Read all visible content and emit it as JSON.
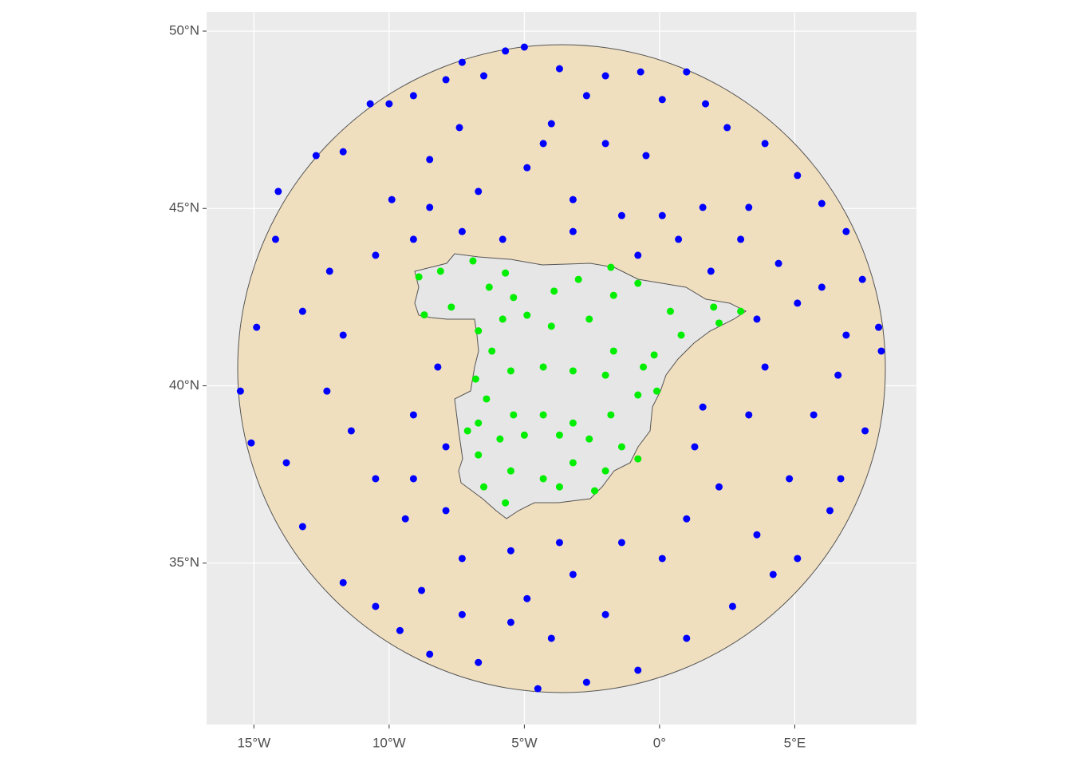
{
  "chart_data": {
    "type": "scatter",
    "xlim": [
      -16.75,
      9.5
    ],
    "ylim": [
      30.45,
      50.54
    ],
    "xticks": [
      {
        "value": -15,
        "label": "15°W"
      },
      {
        "value": -10,
        "label": "10°W"
      },
      {
        "value": -5,
        "label": "5°W"
      },
      {
        "value": 0,
        "label": "0°"
      },
      {
        "value": 5,
        "label": "5°E"
      }
    ],
    "yticks": [
      {
        "value": 35,
        "label": "35°N"
      },
      {
        "value": 40,
        "label": "40°N"
      },
      {
        "value": 45,
        "label": "45°N"
      },
      {
        "value": 50,
        "label": "50°N"
      }
    ],
    "grid": true,
    "series": [
      {
        "color": "#0000ff",
        "x": [
          -5.0,
          -5.7,
          -7.3,
          -3.7,
          -6.5,
          -7.9,
          -9.1,
          -10.0,
          -10.7,
          -2.0,
          -0.7,
          1.0,
          1.7,
          0.1,
          -2.7,
          -4.0,
          -7.4,
          -11.7,
          -12.7,
          -14.1,
          -14.2,
          -14.9,
          -15.5,
          -15.1,
          -13.8,
          -13.2,
          -11.7,
          -10.5,
          -9.6,
          -8.5,
          -6.7,
          -4.5,
          -2.7,
          -0.8,
          1.0,
          2.7,
          4.2,
          5.1,
          6.3,
          6.7,
          7.6,
          8.2,
          8.1,
          7.5,
          6.9,
          6.0,
          5.1,
          3.9,
          2.5,
          4.4,
          5.1,
          3.9,
          3.3,
          1.6,
          1.3,
          2.2,
          1.0,
          0.1,
          -1.4,
          -3.2,
          -4.9,
          -5.5,
          -7.3,
          -8.8,
          -9.4,
          -10.5,
          -11.4,
          -12.3,
          -11.7,
          -13.2,
          -12.2,
          -10.5,
          -9.1,
          -8.5,
          -6.7,
          -4.9,
          -3.2,
          -1.4,
          0.1,
          1.6,
          3.0,
          1.9,
          -3.2,
          -5.8,
          -7.3,
          -2.0,
          -0.5,
          -4.3,
          -8.5,
          -9.9,
          -8.2,
          -9.1,
          -7.9,
          -9.1,
          -7.9,
          -3.7,
          -2.0,
          -4.0,
          -5.5,
          -7.3,
          3.6,
          4.8,
          5.7,
          6.6,
          6.9,
          6.0,
          3.6,
          3.3,
          -0.8,
          0.7
        ],
        "y": [
          49.55,
          49.44,
          49.12,
          48.94,
          48.74,
          48.63,
          48.18,
          47.95,
          47.95,
          48.74,
          48.85,
          48.85,
          47.95,
          48.07,
          48.18,
          47.39,
          47.28,
          46.6,
          46.49,
          45.48,
          44.13,
          41.65,
          39.85,
          38.39,
          37.83,
          36.03,
          34.45,
          33.78,
          33.1,
          32.43,
          32.2,
          31.46,
          31.64,
          31.98,
          32.88,
          33.78,
          34.68,
          35.13,
          36.48,
          37.38,
          38.73,
          40.98,
          41.65,
          43.0,
          44.35,
          45.14,
          45.93,
          46.83,
          47.28,
          43.45,
          42.33,
          40.53,
          39.18,
          39.4,
          38.28,
          37.15,
          36.25,
          35.13,
          35.58,
          34.68,
          34.0,
          35.35,
          35.13,
          34.23,
          36.25,
          37.38,
          38.73,
          39.85,
          41.43,
          42.1,
          43.23,
          43.68,
          44.13,
          45.03,
          45.48,
          46.15,
          45.25,
          44.8,
          44.8,
          45.03,
          44.13,
          43.23,
          44.35,
          44.13,
          44.35,
          46.83,
          46.49,
          46.83,
          46.38,
          45.25,
          40.53,
          39.18,
          38.28,
          37.38,
          36.48,
          35.58,
          33.55,
          32.88,
          33.33,
          33.55,
          35.8,
          37.38,
          39.18,
          40.3,
          41.43,
          42.78,
          41.88,
          45.03,
          43.68,
          44.13
        ]
      },
      {
        "color": "#00ee00",
        "x": [
          -8.9,
          -8.1,
          -6.9,
          -5.7,
          -6.3,
          -5.4,
          -3.9,
          -3.0,
          -1.8,
          -1.7,
          -0.8,
          0.4,
          2.0,
          3.0,
          2.2,
          0.8,
          -0.2,
          -0.6,
          -1.7,
          -2.6,
          -4.0,
          -4.9,
          -5.8,
          -6.7,
          -6.2,
          -6.8,
          -5.5,
          -4.3,
          -3.2,
          -2.0,
          -0.8,
          -1.8,
          -3.2,
          -4.3,
          -5.4,
          -6.4,
          -6.7,
          -5.9,
          -5.0,
          -3.7,
          -2.6,
          -1.4,
          -0.8,
          -2.0,
          -3.2,
          -4.3,
          -5.5,
          -6.7,
          -6.5,
          -5.7,
          -3.7,
          -2.4,
          -7.1,
          -8.7,
          -7.7,
          -0.1
        ],
        "y": [
          43.07,
          43.23,
          43.52,
          43.18,
          42.78,
          42.49,
          42.67,
          43.0,
          43.34,
          42.55,
          42.89,
          42.1,
          42.22,
          42.1,
          41.77,
          41.43,
          40.87,
          40.53,
          40.98,
          41.88,
          41.68,
          41.99,
          41.88,
          41.55,
          40.98,
          40.19,
          40.42,
          40.53,
          40.42,
          40.3,
          39.74,
          39.18,
          38.95,
          39.18,
          39.18,
          39.63,
          38.95,
          38.5,
          38.61,
          38.61,
          38.5,
          38.28,
          37.94,
          37.6,
          37.83,
          37.38,
          37.6,
          38.05,
          37.15,
          36.7,
          37.15,
          37.04,
          38.73,
          42.0,
          42.22,
          39.85
        ]
      }
    ]
  }
}
